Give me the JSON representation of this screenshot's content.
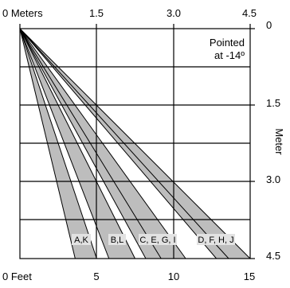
{
  "top_axis": {
    "ticks": [
      "0 Meters",
      "1.5",
      "3.0",
      "4.5"
    ],
    "values_m": [
      0,
      1.5,
      3.0,
      4.5
    ]
  },
  "bottom_axis": {
    "ticks": [
      "0 Feet",
      "5",
      "10",
      "15"
    ],
    "values_ft": [
      0,
      5,
      10,
      15
    ]
  },
  "right_axis": {
    "title": "Meter",
    "ticks": [
      "0",
      "1.5",
      "3.0",
      "4.5"
    ],
    "values_m": [
      0,
      1.5,
      3.0,
      4.5
    ]
  },
  "annotation": {
    "line1": "Pointed",
    "line2": "at -14º"
  },
  "colors": {
    "band_fill": "#bdbdbd",
    "label_background": "#e2e2e2",
    "grid": "#000000"
  },
  "bands": [
    {
      "label": "A,K",
      "x_near_ft": 3.6,
      "x_far_ft": 5.0
    },
    {
      "label": "B,L",
      "x_near_ft": 5.8,
      "x_far_ft": 7.5
    },
    {
      "label": "C, E, G, I",
      "x_near_ft": 8.2,
      "x_far_ft": 9.7
    },
    {
      "label": "C, E, G, I",
      "x_near_ft": 9.2,
      "x_far_ft": 10.8
    },
    {
      "label": "D, F, H, J",
      "x_near_ft": 12.8,
      "x_far_ft": 14.2
    },
    {
      "label": "D, F, H, J",
      "x_near_ft": 13.6,
      "x_far_ft": 15.0
    }
  ],
  "band_labels": [
    "A,K",
    "B,L",
    "C, E, G, I",
    "D, F, H, J"
  ]
}
